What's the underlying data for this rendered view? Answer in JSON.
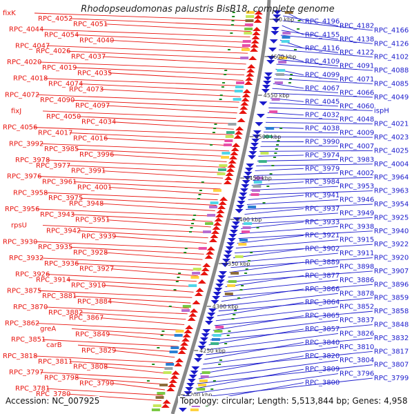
{
  "title": "Rhodopseudomonas palustris BisB18, complete genome",
  "accession_text": "Accession: NC_007925",
  "summary_text": "Topology: circular; Length: 5,513,844 bp; Genes: 4,958",
  "colors": {
    "forward": "#e8140e",
    "reverse": "#1a1acc",
    "backbone": "#888888",
    "tick": "#1c8a1c"
  },
  "ticks": [
    "50 kbp",
    "4600 kbp",
    "4550 kbp",
    "4500 kbp",
    "4450 kbp",
    "4400 kbp",
    "4350 kbp",
    "4300 kbp",
    "4250 kbp",
    "4200 kbp"
  ],
  "left_labels": [
    "fixK",
    "RPC_4052",
    "RPC_4051",
    "RPC_4044",
    "RPC_4054",
    "RPC_4040",
    "RPC_4047",
    "RPC_4026",
    "RPC_4037",
    "RPC_4020",
    "RPC_4019",
    "RPC_4035",
    "RPC_4018",
    "RPC_4074",
    "RPC_4073",
    "RPC_4072",
    "RPC_4090",
    "RPC_4097",
    "fixJ",
    "RPC_4050",
    "RPC_4034",
    "RPC_4056",
    "RPC_4017",
    "RPC_4016",
    "RPC_3992",
    "RPC_3985",
    "RPC_3996",
    "RPC_3978",
    "RPC_3977",
    "RPC_3991",
    "RPC_3976",
    "RPC_3961",
    "RPC_4001",
    "RPC_3958",
    "RPC_3975",
    "RPC_3948",
    "RPC_3956",
    "RPC_3943",
    "RPC_3951",
    "rpsU",
    "RPC_3942",
    "RPC_3939",
    "RPC_3930",
    "RPC_3935",
    "RPC_3928",
    "RPC_3932",
    "RPC_3936",
    "RPC_3927",
    "RPC_3926",
    "RPC_3914",
    "RPC_3910",
    "RPC_3875",
    "RPC_3881",
    "RPC_3884",
    "RPC_3870",
    "RPC_3882",
    "RPC_3867",
    "RPC_3862",
    "greA",
    "RPC_3849",
    "RPC_3851",
    "carB",
    "RPC_3829",
    "RPC_3818",
    "RPC_3811",
    "RPC_3808",
    "RPC_3797",
    "RPC_3798",
    "RPC_3790",
    "RPC_3781",
    "RPC_3780"
  ],
  "right_labels": [
    "RPC_4196",
    "RPC_4182",
    "RPC_4166",
    "RPC_4155",
    "RPC_4138",
    "RPC_4126",
    "RPC_4116",
    "RPC_4122",
    "RPC_4102",
    "RPC_4109",
    "RPC_4091",
    "RPC_4088",
    "RPC_4099",
    "RPC_4071",
    "RPC_4085",
    "RPC_4067",
    "RPC_4066",
    "RPC_4049",
    "RPC_4045",
    "RPC_4060",
    "ispH",
    "RPC_4032",
    "RPC_4048",
    "RPC_4021",
    "RPC_4038",
    "RPC_4009",
    "RPC_4023",
    "RPC_3990",
    "RPC_4007",
    "RPC_4025",
    "RPC_3974",
    "RPC_3983",
    "RPC_4004",
    "RPC_3979",
    "RPC_4002",
    "RPC_3964",
    "RPC_3984",
    "RPC_3953",
    "RPC_3963",
    "RPC_3941",
    "RPC_3946",
    "RPC_3954",
    "RPC_3937",
    "RPC_3949",
    "RPC_3925",
    "RPC_3933",
    "RPC_3938",
    "RPC_3940",
    "RPC_3921",
    "RPC_3915",
    "RPC_3922",
    "RPC_3902",
    "RPC_3911",
    "RPC_3920",
    "RPC_3889",
    "RPC_3898",
    "RPC_3907",
    "RPC_3877",
    "RPC_3886",
    "RPC_3896",
    "RPC_3866",
    "RPC_3878",
    "RPC_3859",
    "RPC_3864",
    "RPC_3852",
    "RPC_3858",
    "RPC_3865",
    "RPC_3837",
    "RPC_3848",
    "RPC_3857",
    "RPC_3826",
    "RPC_3832",
    "RPC_3840",
    "RPC_3810",
    "RPC_3817",
    "RPC_3820",
    "RPC_3804",
    "RPC_3807",
    "RPC_3809",
    "RPC_3796",
    "RPC_3799",
    "RPC_3800"
  ]
}
